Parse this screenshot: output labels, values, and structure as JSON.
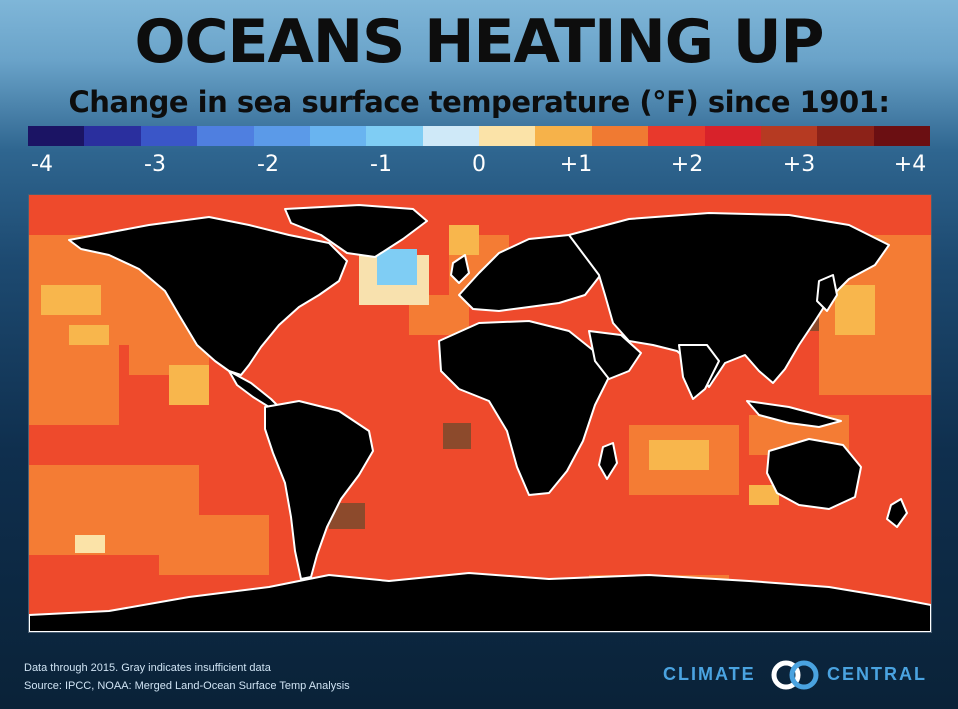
{
  "header": {
    "title": "OCEANS HEATING UP",
    "subtitle": "Change in sea surface temperature (°F) since 1901:"
  },
  "legend": {
    "colors": [
      "#1b1464",
      "#2a2f9e",
      "#3a56c8",
      "#4f7fe0",
      "#5b9ae8",
      "#69b4f0",
      "#7fcdf4",
      "#cfe9f8",
      "#fbe3a8",
      "#f6b24a",
      "#f07a32",
      "#e8392c",
      "#d8222a",
      "#b63a22",
      "#8c2218",
      "#6b0f12"
    ],
    "ticks": [
      "-4",
      "-3",
      "-2",
      "-1",
      "0",
      "+1",
      "+2",
      "+3",
      "+4"
    ]
  },
  "map": {
    "description_colors": {
      "land": "#000000",
      "coastline": "#ffffff",
      "warm_low": "#f6b24a",
      "warm_mid": "#f07a32",
      "warm_high": "#e8392c",
      "warmest": "#8c4a2c",
      "cool": "#cfe9f8",
      "cooler": "#7fcdf4"
    }
  },
  "footer": {
    "note_line1": "Data through 2015. Gray indicates insufficient data",
    "note_line2": "Source: IPCC, NOAA: Merged Land-Ocean Surface Temp Analysis"
  },
  "logo": {
    "word1": "CLIMATE",
    "word2": "CENTRAL",
    "color": "#4aa3e0"
  }
}
